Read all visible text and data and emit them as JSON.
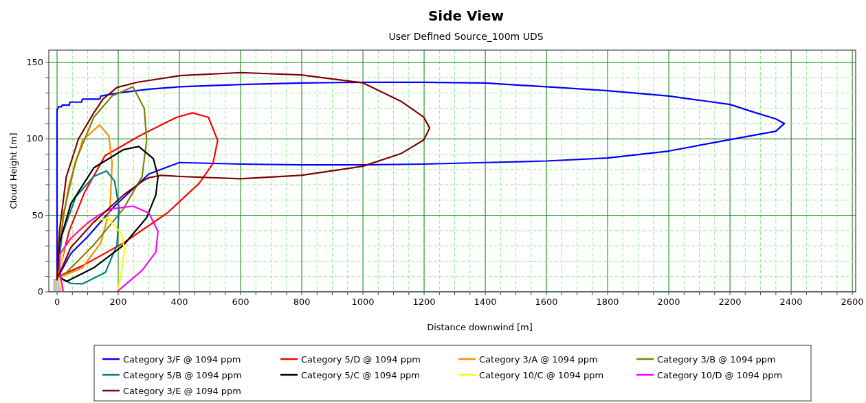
{
  "chart_data": {
    "type": "line",
    "title": "Side View",
    "subtitle": "User Defined Source_100m UDS",
    "xlabel": "Distance downwind [m]",
    "ylabel": "Cloud Height [m]",
    "xlim": [
      -27,
      2611
    ],
    "ylim": [
      0,
      158
    ],
    "xticks": [
      0,
      {
        "value": 50,
        "label": null
      },
      {
        "value": 100,
        "label": null
      },
      {
        "value": 150,
        "label": null
      },
      200,
      {
        "value": 250,
        "label": null
      },
      {
        "value": 300,
        "label": null
      },
      {
        "value": 350,
        "label": null
      },
      400,
      {
        "value": 450,
        "label": null
      },
      {
        "value": 500,
        "label": null
      },
      {
        "value": 550,
        "label": null
      },
      600,
      {
        "value": 650,
        "label": null
      },
      {
        "value": 700,
        "label": null
      },
      {
        "value": 750,
        "label": null
      },
      800,
      {
        "value": 850,
        "label": null
      },
      {
        "value": 900,
        "label": null
      },
      {
        "value": 950,
        "label": null
      },
      1000,
      {
        "value": 1050,
        "label": null
      },
      {
        "value": 1100,
        "label": null
      },
      {
        "value": 1150,
        "label": null
      },
      1200,
      {
        "value": 1250,
        "label": null
      },
      {
        "value": 1300,
        "label": null
      },
      {
        "value": 1350,
        "label": null
      },
      1400,
      {
        "value": 1450,
        "label": null
      },
      {
        "value": 1500,
        "label": null
      },
      {
        "value": 1550,
        "label": null
      },
      1600,
      {
        "value": 1650,
        "label": null
      },
      {
        "value": 1700,
        "label": null
      },
      {
        "value": 1750,
        "label": null
      },
      1800,
      {
        "value": 1850,
        "label": null
      },
      {
        "value": 1900,
        "label": null
      },
      {
        "value": 1950,
        "label": null
      },
      2000,
      {
        "value": 2050,
        "label": null
      },
      {
        "value": 2100,
        "label": null
      },
      {
        "value": 2150,
        "label": null
      },
      2200,
      {
        "value": 2250,
        "label": null
      },
      {
        "value": 2300,
        "label": null
      },
      {
        "value": 2350,
        "label": null
      },
      2400,
      {
        "value": 2450,
        "label": null
      },
      {
        "value": 2500,
        "label": null
      },
      {
        "value": 2550,
        "label": null
      },
      2600
    ],
    "yticks": [
      0,
      {
        "value": 10,
        "label": null
      },
      {
        "value": 20,
        "label": null
      },
      {
        "value": 30,
        "label": null
      },
      {
        "value": 40,
        "label": null
      },
      50,
      {
        "value": 60,
        "label": null
      },
      {
        "value": 70,
        "label": null
      },
      {
        "value": 80,
        "label": null
      },
      {
        "value": 90,
        "label": null
      },
      100,
      {
        "value": 110,
        "label": null
      },
      {
        "value": 120,
        "label": null
      },
      {
        "value": 130,
        "label": null
      },
      {
        "value": 140,
        "label": null
      },
      150
    ],
    "grid": true,
    "legend": "bottom",
    "marker": "none",
    "line_style": "solid",
    "series": [
      {
        "name": "Category 3/F @ 1094 ppm",
        "color": "#0000ff",
        "x": [
          0,
          0,
          3,
          5,
          15,
          17,
          40,
          42,
          80,
          83,
          140,
          143,
          200,
          300,
          400,
          600,
          800,
          1000,
          1200,
          1400,
          1600,
          1800,
          2000,
          2200,
          2285,
          2350,
          2378,
          2350,
          2200,
          2000,
          1800,
          1600,
          1400,
          1200,
          1000,
          800,
          600,
          400,
          353,
          300,
          263,
          188,
          100,
          45,
          4
        ],
        "values": [
          8,
          119,
          120,
          121,
          121,
          122,
          122,
          124,
          124,
          126,
          126,
          128,
          130,
          132.5,
          134,
          135.5,
          136.5,
          137,
          137,
          136.5,
          134,
          131.5,
          128,
          122.5,
          117,
          113,
          110,
          105,
          99.5,
          92,
          87.5,
          85.5,
          84.5,
          83.5,
          83,
          83,
          83.5,
          84.5,
          81,
          77,
          70,
          56,
          36,
          25,
          10
        ]
      },
      {
        "name": "Category 5/D @ 1094 ppm",
        "color": "#ff0000",
        "x": [
          0,
          40,
          90,
          157,
          270,
          390,
          443,
          495,
          525,
          510,
          465,
          360,
          218,
          83,
          4
        ],
        "values": [
          8,
          40,
          65,
          89,
          102,
          114,
          117,
          114,
          99,
          84,
          71,
          51.5,
          32,
          17,
          10
        ]
      },
      {
        "name": "Category 3/A @ 1094 ppm",
        "color": "#ff8c00",
        "x": [
          0,
          8,
          38,
          83,
          139,
          169,
          180,
          173,
          143,
          83,
          16,
          4
        ],
        "values": [
          8,
          32,
          69,
          99,
          109,
          102,
          84,
          54.5,
          32,
          15.7,
          10,
          10
        ]
      },
      {
        "name": "Category 3/B @ 1094 ppm",
        "color": "#808000",
        "x": [
          0,
          20,
          60,
          120,
          180,
          248,
          285,
          293,
          278,
          218,
          120,
          31,
          4
        ],
        "values": [
          8,
          50,
          85,
          114,
          128,
          134,
          120,
          99,
          75.4,
          54.5,
          30.6,
          12.7,
          10
        ]
      },
      {
        "name": "Category 5/B @ 1094 ppm",
        "color": "#008080",
        "x": [
          0,
          16,
          61,
          120,
          162,
          188,
          203,
          196,
          158,
          83,
          45,
          4
        ],
        "values": [
          8,
          37,
          62,
          75.4,
          79,
          72.4,
          54.5,
          30.6,
          12.7,
          5.2,
          5.4,
          10
        ]
      },
      {
        "name": "Category 5/C @ 1094 ppm",
        "color": "#000000",
        "x": [
          0,
          8,
          45,
          120,
          218,
          267,
          315,
          330,
          323,
          293,
          218,
          120,
          31,
          4
        ],
        "values": [
          8,
          32,
          57.5,
          81,
          93,
          95,
          87,
          75.4,
          63.4,
          48.5,
          30.6,
          15.7,
          6.7,
          10
        ]
      },
      {
        "name": "Category 10/C @ 1094 ppm",
        "color": "#ffff00",
        "x": [
          15,
          5,
          22,
          83,
          165,
          210,
          221,
          210,
          199
        ],
        "values": [
          0,
          10,
          28,
          43,
          48.5,
          38,
          27.6,
          12.7,
          0
        ]
      },
      {
        "name": "Category 10/D @ 1094 ppm",
        "color": "#ff00ff",
        "x": [
          20,
          8,
          10,
          45,
          100,
          135,
          173,
          248,
          300,
          330,
          323,
          278,
          225,
          196
        ],
        "values": [
          0,
          15,
          25,
          35,
          45,
          50,
          54,
          56,
          51.5,
          39.5,
          26,
          14,
          5,
          0
        ]
      },
      {
        "name": "Category 3/E @ 1094 ppm",
        "color": "#800000",
        "x": [
          0,
          8,
          30,
          70,
          120,
          150,
          196,
          263,
          401,
          600,
          798,
          1000,
          1124,
          1199,
          1218,
          1199,
          1124,
          1000,
          798,
          600,
          401,
          338,
          300,
          285,
          218,
          120,
          45,
          4
        ],
        "values": [
          8,
          40,
          75,
          100,
          117,
          126,
          133.6,
          137,
          141.3,
          143.3,
          141.8,
          136.6,
          124.6,
          114.2,
          107,
          99.3,
          90.3,
          82.1,
          76.1,
          73.9,
          75.4,
          76.1,
          74.6,
          73.1,
          63.4,
          45.5,
          29,
          10
        ]
      }
    ]
  }
}
